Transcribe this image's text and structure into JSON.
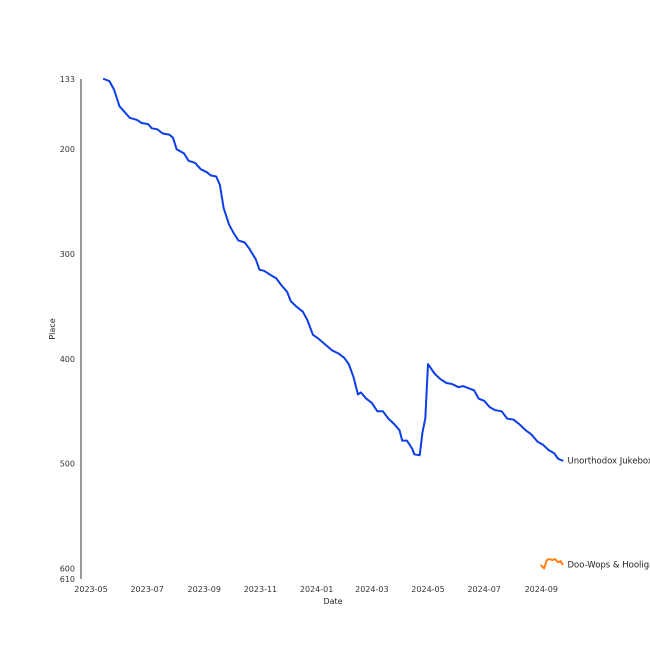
{
  "chart_data": {
    "type": "line",
    "title": "",
    "xlabel": "Date",
    "ylabel": "Place",
    "y_inverted": true,
    "x_range": [
      "2023-05-01",
      "2024-09-30"
    ],
    "ylim": [
      133,
      610
    ],
    "x_ticks": [
      "2023-05",
      "2023-07",
      "2023-09",
      "2023-11",
      "2024-01",
      "2024-03",
      "2024-05",
      "2024-07",
      "2024-09"
    ],
    "y_ticks": [
      133,
      200,
      300,
      400,
      500,
      600,
      610
    ],
    "grid": false,
    "legend": "none; series labelled at line end",
    "series": [
      {
        "name": "Unorthodox Jukebox",
        "color": "#0b3ee8",
        "points": [
          [
            "2023-05-15",
            133
          ],
          [
            "2023-05-21",
            135
          ],
          [
            "2023-05-26",
            143
          ],
          [
            "2023-06-01",
            159
          ],
          [
            "2023-06-08",
            166
          ],
          [
            "2023-06-12",
            170
          ],
          [
            "2023-06-20",
            172
          ],
          [
            "2023-06-25",
            175
          ],
          [
            "2023-07-02",
            176
          ],
          [
            "2023-07-06",
            180
          ],
          [
            "2023-07-12",
            181
          ],
          [
            "2023-07-18",
            185
          ],
          [
            "2023-07-25",
            186
          ],
          [
            "2023-07-29",
            189
          ],
          [
            "2023-08-02",
            200
          ],
          [
            "2023-08-10",
            204
          ],
          [
            "2023-08-15",
            211
          ],
          [
            "2023-08-22",
            213
          ],
          [
            "2023-08-28",
            219
          ],
          [
            "2023-09-04",
            222
          ],
          [
            "2023-09-08",
            225
          ],
          [
            "2023-09-14",
            226
          ],
          [
            "2023-09-18",
            234
          ],
          [
            "2023-09-22",
            256
          ],
          [
            "2023-09-28",
            272
          ],
          [
            "2023-10-03",
            280
          ],
          [
            "2023-10-08",
            287
          ],
          [
            "2023-10-15",
            289
          ],
          [
            "2023-10-20",
            295
          ],
          [
            "2023-10-27",
            305
          ],
          [
            "2023-10-31",
            315
          ],
          [
            "2023-11-05",
            316
          ],
          [
            "2023-11-12",
            320
          ],
          [
            "2023-11-18",
            323
          ],
          [
            "2023-11-24",
            330
          ],
          [
            "2023-11-30",
            336
          ],
          [
            "2023-12-04",
            345
          ],
          [
            "2023-12-10",
            350
          ],
          [
            "2023-12-17",
            355
          ],
          [
            "2023-12-22",
            363
          ],
          [
            "2023-12-28",
            377
          ],
          [
            "2024-01-02",
            380
          ],
          [
            "2024-01-10",
            386
          ],
          [
            "2024-01-18",
            392
          ],
          [
            "2024-01-25",
            395
          ],
          [
            "2024-01-31",
            399
          ],
          [
            "2024-02-05",
            405
          ],
          [
            "2024-02-10",
            417
          ],
          [
            "2024-02-15",
            434
          ],
          [
            "2024-02-18",
            432
          ],
          [
            "2024-02-24",
            438
          ],
          [
            "2024-03-01",
            442
          ],
          [
            "2024-03-07",
            450
          ],
          [
            "2024-03-13",
            450
          ],
          [
            "2024-03-19",
            457
          ],
          [
            "2024-03-25",
            462
          ],
          [
            "2024-03-31",
            468
          ],
          [
            "2024-04-03",
            478
          ],
          [
            "2024-04-08",
            478
          ],
          [
            "2024-04-14",
            486
          ],
          [
            "2024-04-16",
            491
          ],
          [
            "2024-04-22",
            492
          ],
          [
            "2024-04-25",
            470
          ],
          [
            "2024-04-28",
            457
          ],
          [
            "2024-05-01",
            405
          ],
          [
            "2024-05-08",
            414
          ],
          [
            "2024-05-14",
            419
          ],
          [
            "2024-05-21",
            423
          ],
          [
            "2024-05-27",
            424
          ],
          [
            "2024-06-03",
            427
          ],
          [
            "2024-06-08",
            426
          ],
          [
            "2024-06-14",
            428
          ],
          [
            "2024-06-20",
            430
          ],
          [
            "2024-06-25",
            438
          ],
          [
            "2024-07-01",
            440
          ],
          [
            "2024-07-07",
            446
          ],
          [
            "2024-07-13",
            449
          ],
          [
            "2024-07-20",
            450
          ],
          [
            "2024-07-26",
            457
          ],
          [
            "2024-08-02",
            458
          ],
          [
            "2024-08-09",
            463
          ],
          [
            "2024-08-15",
            468
          ],
          [
            "2024-08-21",
            472
          ],
          [
            "2024-08-28",
            479
          ],
          [
            "2024-09-03",
            482
          ],
          [
            "2024-09-09",
            487
          ],
          [
            "2024-09-15",
            490
          ],
          [
            "2024-09-19",
            495
          ],
          [
            "2024-09-21",
            496
          ],
          [
            "2024-09-24",
            497
          ]
        ]
      },
      {
        "name": "Doo-Wops & Hooligans",
        "color": "#ff7f0e",
        "points": [
          [
            "2024-09-01",
            597
          ],
          [
            "2024-09-04",
            600
          ],
          [
            "2024-09-07",
            592
          ],
          [
            "2024-09-10",
            591
          ],
          [
            "2024-09-13",
            592
          ],
          [
            "2024-09-16",
            591
          ],
          [
            "2024-09-19",
            594
          ],
          [
            "2024-09-22",
            593
          ],
          [
            "2024-09-24",
            596
          ]
        ]
      }
    ]
  }
}
